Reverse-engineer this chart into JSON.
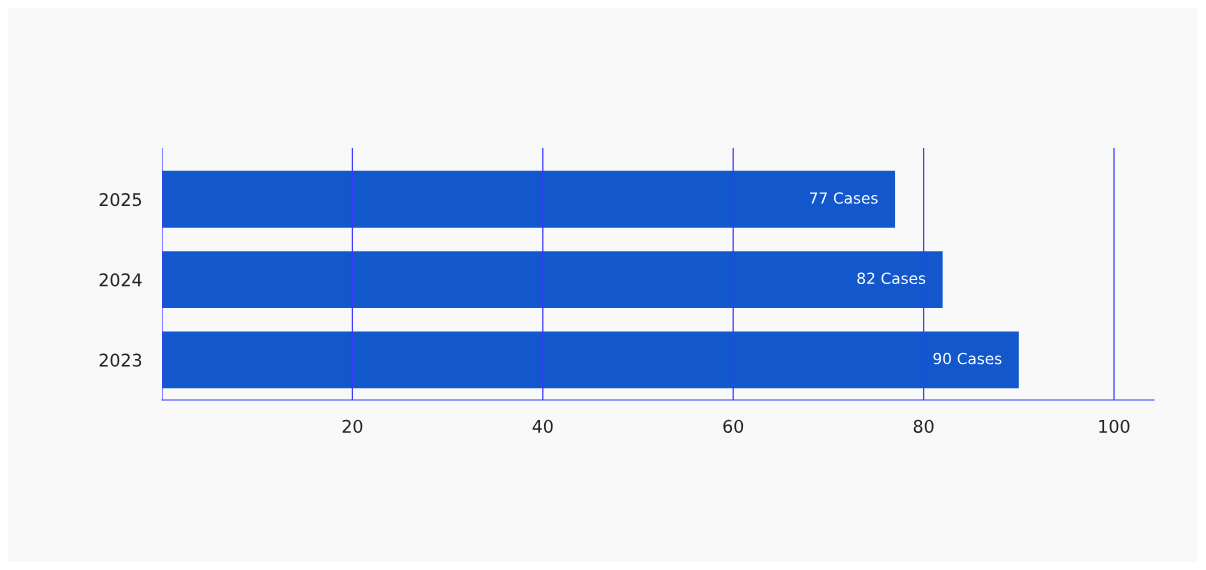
{
  "chart_data": {
    "type": "bar",
    "orientation": "horizontal",
    "categories": [
      "2025",
      "2024",
      "2023"
    ],
    "values": [
      77,
      82,
      90
    ],
    "color": "#1257cc",
    "value_labels": [
      "77 Cases",
      "82 Cases",
      "90 Cases"
    ],
    "xlim": [
      0,
      104.2
    ],
    "xticks": [
      {
        "value": 0,
        "label": null
      },
      20,
      40,
      60,
      80,
      100
    ],
    "grid": "x"
  }
}
